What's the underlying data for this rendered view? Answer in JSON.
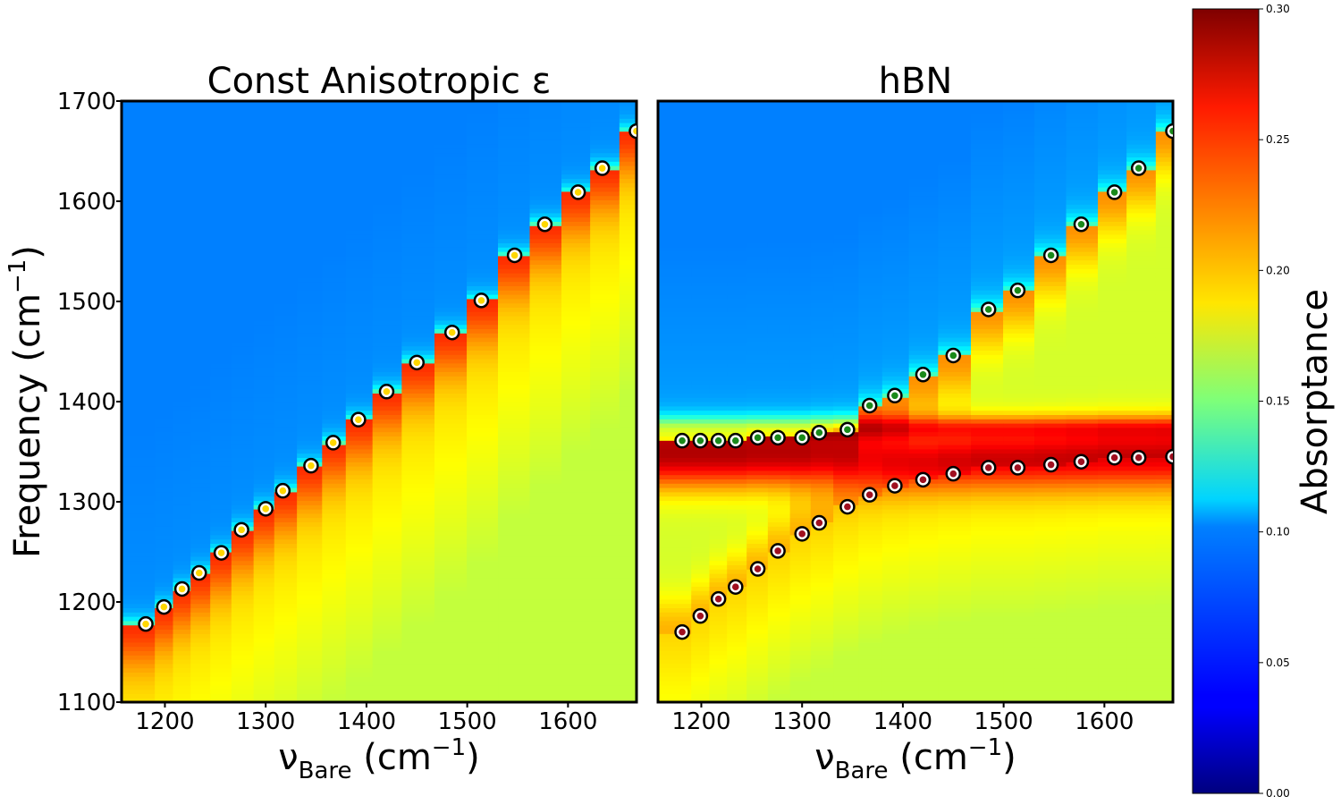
{
  "chart_data": [
    {
      "type": "heatmap",
      "title": "Const Anisotropic ε",
      "xlabel": "ν_Bare (cm⁻¹)",
      "xlabel_main": "ν",
      "xlabel_sub": "Bare",
      "xlabel_unit": "(cm",
      "xlabel_sup": "−1",
      "xlabel_close": ")",
      "ylabel": "Frequency (cm⁻¹)",
      "ylabel_main": "Frequency (cm",
      "ylabel_sup": "−1",
      "ylabel_close": ")",
      "xlim": [
        1157,
        1668
      ],
      "ylim": [
        1100,
        1700
      ],
      "xticks": [
        "1200",
        "1300",
        "1400",
        "1500",
        "1600"
      ],
      "yticks": [
        "1100",
        "1200",
        "1300",
        "1400",
        "1500",
        "1600",
        "1700"
      ],
      "columns_bare_frequency": [
        1181,
        1199,
        1217,
        1234,
        1256,
        1276,
        1300,
        1317,
        1345,
        1367,
        1392,
        1420,
        1450,
        1485,
        1514,
        1547,
        1577,
        1610,
        1634,
        1668
      ],
      "upper_branch": [
        1178,
        1195,
        1213,
        1229,
        1249,
        1272,
        1293,
        1311,
        1336,
        1359,
        1382,
        1410,
        1439,
        1469,
        1501,
        1546,
        1577,
        1609,
        1633,
        1670
      ],
      "marker_color": "#ffd700"
    },
    {
      "type": "heatmap",
      "title": "hBN",
      "xlabel": "ν_Bare (cm⁻¹)",
      "xlabel_main": "ν",
      "xlabel_sub": "Bare",
      "xlabel_unit": "(cm",
      "xlabel_sup": "−1",
      "xlabel_close": ")",
      "xlim": [
        1157,
        1668
      ],
      "ylim": [
        1100,
        1700
      ],
      "xticks": [
        "1200",
        "1300",
        "1400",
        "1500",
        "1600"
      ],
      "columns_bare_frequency": [
        1181,
        1199,
        1217,
        1234,
        1256,
        1276,
        1300,
        1317,
        1345,
        1367,
        1392,
        1420,
        1450,
        1485,
        1514,
        1547,
        1577,
        1610,
        1634,
        1668
      ],
      "upper_branch": [
        1361,
        1361,
        1361,
        1361,
        1364,
        1364,
        1364,
        1369,
        1372,
        1396,
        1406,
        1427,
        1446,
        1492,
        1511,
        1546,
        1577,
        1609,
        1633,
        1670
      ],
      "lower_branch": [
        1170,
        1186,
        1203,
        1215,
        1233,
        1251,
        1268,
        1279,
        1295,
        1307,
        1316,
        1322,
        1328,
        1334,
        1334,
        1337,
        1340,
        1344,
        1344,
        1345
      ],
      "upper_marker_color": "#1a8a1a",
      "lower_marker_color": "#a01020"
    }
  ],
  "colorbar": {
    "label": "Absorptance",
    "colormap": "jet",
    "range": [
      0.0,
      0.3
    ],
    "ticks": [
      "0.00",
      "0.05",
      "0.10",
      "0.15",
      "0.20",
      "0.25",
      "0.30"
    ]
  }
}
